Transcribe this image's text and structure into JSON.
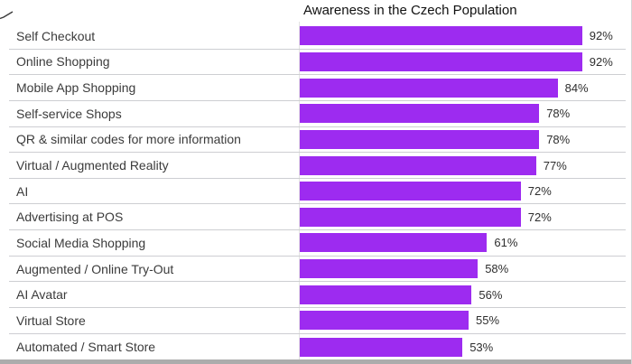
{
  "chart_data": {
    "type": "bar",
    "orientation": "horizontal",
    "title": "Awareness in the Czech Population",
    "categories": [
      "Self Checkout",
      "Online Shopping",
      "Mobile App Shopping",
      "Self-service Shops",
      "QR & similar codes for more information",
      "Virtual / Augmented Reality",
      "AI",
      "Advertising at POS",
      "Social Media Shopping",
      "Augmented / Online Try-Out",
      "AI Avatar",
      "Virtual Store",
      "Automated / Smart Store"
    ],
    "values": [
      92,
      92,
      84,
      78,
      78,
      77,
      72,
      72,
      61,
      58,
      56,
      55,
      53
    ],
    "value_suffix": "%",
    "xlabel": "",
    "ylabel": "",
    "xlim": [
      0,
      100
    ],
    "grid": false,
    "legend": "none",
    "value_labels_position": "outside-end"
  },
  "colors": {
    "bar": "#9d2bf0",
    "divider": "#cdced2",
    "axis_line": "#e3e3e3",
    "bottom_strip": "#acacac",
    "title_text": "#111111",
    "label_text": "#3b3b3b",
    "value_text": "#2e2e2e",
    "right_border": "#d6d6d6"
  }
}
